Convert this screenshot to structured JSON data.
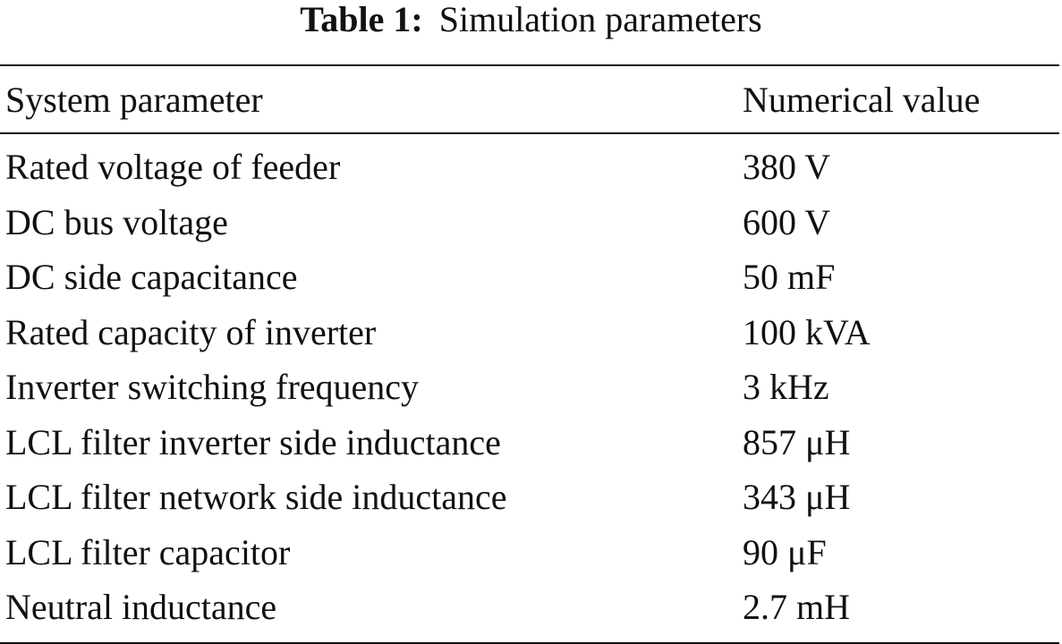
{
  "caption": {
    "label": "Table 1:",
    "title": "Simulation parameters"
  },
  "table": {
    "headers": [
      "System parameter",
      "Numerical value"
    ],
    "rows": [
      [
        "Rated voltage of feeder",
        "380 V"
      ],
      [
        "DC bus voltage",
        "600 V"
      ],
      [
        "DC side capacitance",
        "50 mF"
      ],
      [
        "Rated capacity of inverter",
        "100 kVA"
      ],
      [
        "Inverter switching frequency",
        "3 kHz"
      ],
      [
        "LCL filter inverter side inductance",
        "857 μH"
      ],
      [
        "LCL filter network side inductance",
        "343 μH"
      ],
      [
        "LCL filter capacitor",
        "90 μF"
      ],
      [
        "Neutral inductance",
        "2.7 mH"
      ]
    ]
  }
}
